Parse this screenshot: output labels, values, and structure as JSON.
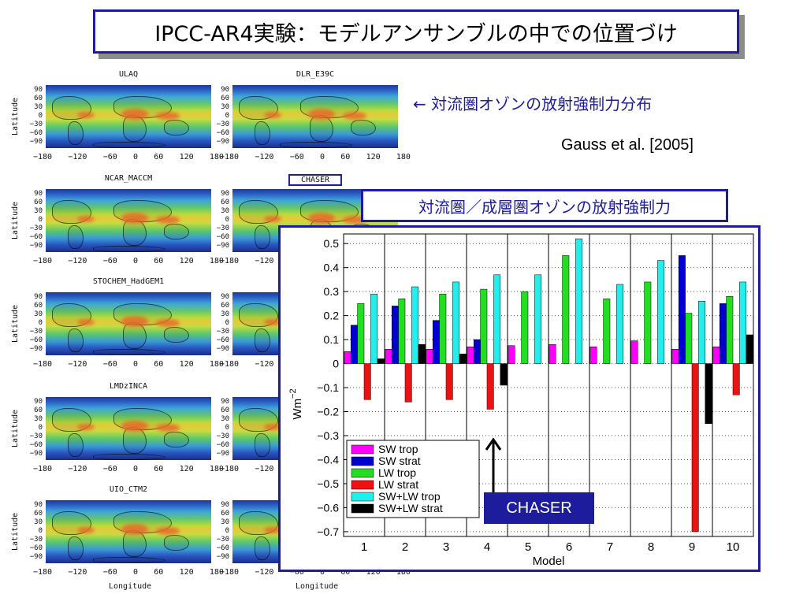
{
  "title": "IPCC-AR4実験：モデルアンサンブルの中での位置づけ",
  "maps": {
    "models": [
      "ULAQ",
      "DLR_E39C",
      "NCAR_MACCM",
      "CHASER",
      "STOCHEM_HadGEM1",
      "",
      "LMDzINCA",
      "",
      "UIO_CTM2",
      ""
    ],
    "lat_ticks": [
      "90",
      "60",
      "30",
      "0",
      "−30",
      "−60",
      "−90"
    ],
    "lon_ticks": [
      "−180",
      "−120",
      "−60",
      "0",
      "60",
      "120",
      "180"
    ],
    "lat_axis_label": "Latitude",
    "lon_axis_label": "Longitude"
  },
  "annotations": {
    "forcing_note": "← 対流圏オゾンの放射強制力分布",
    "citation": "Gauss et al. [2005]",
    "chart_heading": "対流圏／成層圏オゾンの放射強制力",
    "callout": "CHASER"
  },
  "colors": {
    "accent": "#1c1c9c",
    "sw_trop": "#ff00ff",
    "sw_strat": "#0000cc",
    "lw_trop": "#22dd22",
    "lw_strat": "#ee1111",
    "swlw_trop": "#22eeee",
    "swlw_strat": "#000000"
  },
  "chart_data": {
    "type": "bar",
    "categories": [
      "1",
      "2",
      "3",
      "4",
      "5",
      "6",
      "7",
      "8",
      "9",
      "10"
    ],
    "xlabel": "Model",
    "ylabel": "Wm",
    "ylabel_sup": "−2",
    "ylim": [
      -0.72,
      0.54
    ],
    "yticks": [
      0.5,
      0.4,
      0.3,
      0.2,
      0.1,
      0,
      -0.1,
      -0.2,
      -0.3,
      -0.4,
      -0.5,
      -0.6,
      -0.7
    ],
    "ytick_labels": [
      "0.5",
      "0.4",
      "0.3",
      "0.2",
      "0.1",
      "0",
      "−0.1",
      "−0.2",
      "−0.3",
      "−0.4",
      "−0.5",
      "−0.6",
      "−0.7"
    ],
    "grid": true,
    "legend_position": "bottom-left",
    "series": [
      {
        "name": "SW trop",
        "color": "#ff00ff",
        "values": [
          0.05,
          0.06,
          0.06,
          0.07,
          0.075,
          0.08,
          0.07,
          0.095,
          0.06,
          0.07
        ]
      },
      {
        "name": "SW strat",
        "color": "#0000cc",
        "values": [
          0.16,
          0.24,
          0.18,
          0.1,
          null,
          null,
          null,
          null,
          0.45,
          0.25
        ]
      },
      {
        "name": "LW trop",
        "color": "#22dd22",
        "values": [
          0.25,
          0.27,
          0.29,
          0.31,
          0.3,
          0.45,
          0.27,
          0.34,
          0.21,
          0.28
        ]
      },
      {
        "name": "LW strat",
        "color": "#ee1111",
        "values": [
          -0.15,
          -0.16,
          -0.15,
          -0.19,
          null,
          null,
          null,
          null,
          -0.7,
          -0.13
        ]
      },
      {
        "name": "SW+LW trop",
        "color": "#22eeee",
        "values": [
          0.29,
          0.32,
          0.34,
          0.37,
          0.37,
          0.52,
          0.33,
          0.43,
          0.26,
          0.34
        ]
      },
      {
        "name": "SW+LW strat",
        "color": "#000000",
        "values": [
          0.02,
          0.08,
          0.04,
          -0.09,
          null,
          null,
          null,
          null,
          -0.25,
          0.12
        ]
      }
    ]
  }
}
